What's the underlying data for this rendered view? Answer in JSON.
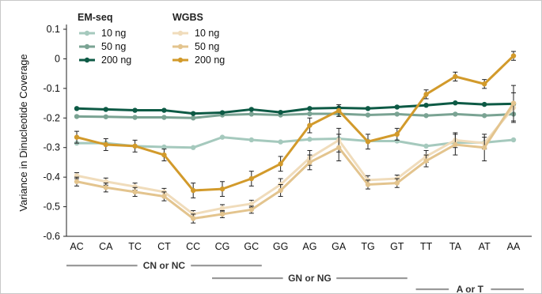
{
  "chart_data": {
    "type": "line",
    "categories": [
      "AC",
      "CA",
      "TC",
      "CT",
      "CC",
      "CG",
      "GC",
      "GG",
      "AG",
      "GA",
      "TG",
      "GT",
      "TT",
      "TA",
      "AT",
      "AA"
    ],
    "ylabel": "Variance in Dinucleotide Coverage",
    "ylim": [
      -0.6,
      0.1
    ],
    "yticks": [
      -0.6,
      -0.5,
      -0.4,
      -0.3,
      -0.2,
      -0.1,
      0,
      0.1
    ],
    "grid": false,
    "legend_placement": "top-left",
    "legend_groups": [
      "EM-seq",
      "WGBS"
    ],
    "series": [
      {
        "group": "EM-seq",
        "name": "10 ng",
        "color": "#a5c9bd",
        "values": [
          -0.285,
          -0.285,
          -0.295,
          -0.298,
          -0.3,
          -0.265,
          -0.274,
          -0.281,
          -0.272,
          -0.27,
          -0.278,
          -0.278,
          -0.295,
          -0.283,
          -0.283,
          -0.274
        ]
      },
      {
        "group": "EM-seq",
        "name": "50 ng",
        "color": "#7aa393",
        "values": [
          -0.195,
          -0.196,
          -0.198,
          -0.198,
          -0.2,
          -0.19,
          -0.187,
          -0.19,
          -0.186,
          -0.186,
          -0.19,
          -0.187,
          -0.192,
          -0.187,
          -0.192,
          -0.187
        ]
      },
      {
        "group": "EM-seq",
        "name": "200 ng",
        "color": "#0d5a45",
        "values": [
          -0.168,
          -0.171,
          -0.174,
          -0.174,
          -0.185,
          -0.182,
          -0.171,
          -0.181,
          -0.168,
          -0.166,
          -0.168,
          -0.163,
          -0.157,
          -0.149,
          -0.154,
          -0.152
        ]
      },
      {
        "group": "WGBS",
        "name": "10 ng",
        "color": "#f0dcbb",
        "values": [
          -0.395,
          -0.415,
          -0.432,
          -0.45,
          -0.525,
          -0.505,
          -0.49,
          -0.425,
          -0.335,
          -0.275,
          -0.41,
          -0.405,
          -0.33,
          -0.275,
          -0.285,
          -0.165
        ],
        "errors": [
          0.01,
          0.012,
          0.012,
          0.012,
          0.012,
          0.012,
          0.012,
          0.02,
          0.025,
          0.04,
          0.015,
          0.012,
          0.02,
          0.025,
          0.02,
          0.05
        ]
      },
      {
        "group": "WGBS",
        "name": "50 ng",
        "color": "#e3c48e",
        "values": [
          -0.415,
          -0.435,
          -0.45,
          -0.465,
          -0.54,
          -0.525,
          -0.51,
          -0.445,
          -0.35,
          -0.3,
          -0.425,
          -0.42,
          -0.345,
          -0.29,
          -0.3,
          -0.15
        ],
        "errors": [
          0.015,
          0.015,
          0.015,
          0.015,
          0.015,
          0.012,
          0.012,
          0.02,
          0.025,
          0.045,
          0.015,
          0.015,
          0.02,
          0.035,
          0.045,
          0.06
        ]
      },
      {
        "group": "WGBS",
        "name": "200 ng",
        "color": "#d29a2b",
        "values": [
          -0.265,
          -0.29,
          -0.295,
          -0.325,
          -0.445,
          -0.44,
          -0.405,
          -0.355,
          -0.225,
          -0.175,
          -0.28,
          -0.255,
          -0.12,
          -0.06,
          -0.085,
          0.01
        ],
        "errors": [
          0.02,
          0.02,
          0.02,
          0.02,
          0.025,
          0.025,
          0.025,
          0.025,
          0.025,
          0.02,
          0.025,
          0.02,
          0.015,
          0.015,
          0.015,
          0.015
        ]
      }
    ],
    "groupings": [
      {
        "label": "CN or NC",
        "from": "AC",
        "to": "GC"
      },
      {
        "label": "GN or NG",
        "from": "CG",
        "to": "GT"
      },
      {
        "label": "A or T",
        "from": "TT",
        "to": "AA"
      }
    ]
  }
}
